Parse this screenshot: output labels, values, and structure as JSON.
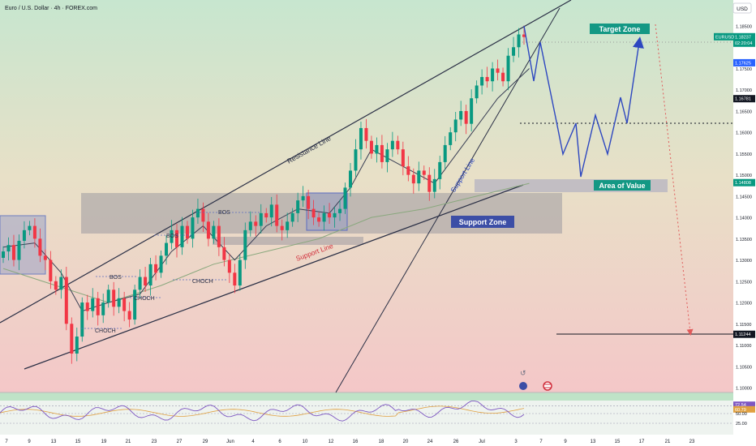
{
  "header": {
    "symbol_title": "Euro / U.S. Dollar · 4h · FOREX.com"
  },
  "currency_button": "USD",
  "chart_data": {
    "type": "candlestick",
    "symbol": "EURUSD",
    "ylim": [
      1.0965,
      1.188
    ],
    "y_ticks": [
      "1.18500",
      "1.17500",
      "1.17000",
      "1.16500",
      "1.16000",
      "1.15500",
      "1.15000",
      "1.14500",
      "1.14000",
      "1.13500",
      "1.13000",
      "1.12500",
      "1.12000",
      "1.11500",
      "1.11000",
      "1.10500",
      "1.10000"
    ],
    "x_ticks": [
      "7",
      "9",
      "13",
      "15",
      "19",
      "21",
      "23",
      "27",
      "29",
      "Jun",
      "4",
      "6",
      "10",
      "12",
      "16",
      "18",
      "20",
      "24",
      "26",
      "Jul",
      "3",
      "7",
      "9",
      "13",
      "15",
      "17",
      "21",
      "23"
    ],
    "price_tags": [
      {
        "label": "EURUSD",
        "value": "1.18237",
        "sub": "02:20:04",
        "color": "#089981"
      },
      {
        "label": "",
        "value": "1.17625",
        "color": "#2962ff"
      },
      {
        "label": "",
        "value": "1.16781",
        "color": "#131722"
      },
      {
        "label": "",
        "value": "1.14808",
        "color": "#089981"
      },
      {
        "label": "",
        "value": "1.11244",
        "color": "#131722"
      }
    ],
    "closes": [
      1.132,
      1.1335,
      1.13,
      1.1345,
      1.137,
      1.138,
      1.135,
      1.131,
      1.13,
      1.125,
      1.123,
      1.126,
      1.115,
      1.108,
      1.112,
      1.12,
      1.118,
      1.121,
      1.117,
      1.12,
      1.123,
      1.119,
      1.121,
      1.118,
      1.116,
      1.123,
      1.126,
      1.124,
      1.129,
      1.127,
      1.131,
      1.134,
      1.137,
      1.133,
      1.138,
      1.135,
      1.14,
      1.142,
      1.139,
      1.135,
      1.138,
      1.133,
      1.13,
      1.127,
      1.124,
      1.13,
      1.137,
      1.139,
      1.138,
      1.141,
      1.14,
      1.143,
      1.138,
      1.137,
      1.139,
      1.141,
      1.144,
      1.145,
      1.142,
      1.14,
      1.139,
      1.141,
      1.14,
      1.141,
      1.142,
      1.147,
      1.151,
      1.156,
      1.161,
      1.158,
      1.155,
      1.157,
      1.153,
      1.156,
      1.158,
      1.156,
      1.152,
      1.15,
      1.148,
      1.151,
      1.15,
      1.146,
      1.149,
      1.153,
      1.157,
      1.16,
      1.163,
      1.165,
      1.162,
      1.168,
      1.171,
      1.173,
      1.172,
      1.175,
      1.174,
      1.172,
      1.178,
      1.18,
      1.183,
      1.1824
    ],
    "ma_fast": [
      [
        0,
        1.133
      ],
      [
        6,
        1.134
      ],
      [
        11,
        1.127
      ],
      [
        15,
        1.118
      ],
      [
        20,
        1.12
      ],
      [
        26,
        1.122
      ],
      [
        32,
        1.132
      ],
      [
        38,
        1.138
      ],
      [
        44,
        1.13
      ],
      [
        50,
        1.138
      ],
      [
        56,
        1.142
      ],
      [
        62,
        1.141
      ],
      [
        66,
        1.147
      ],
      [
        70,
        1.156
      ],
      [
        76,
        1.152
      ],
      [
        82,
        1.148
      ],
      [
        88,
        1.158
      ],
      [
        94,
        1.168
      ],
      [
        100,
        1.175
      ]
    ],
    "ma_slow": [
      [
        0,
        1.128
      ],
      [
        10,
        1.124
      ],
      [
        20,
        1.12
      ],
      [
        30,
        1.124
      ],
      [
        40,
        1.129
      ],
      [
        50,
        1.132
      ],
      [
        60,
        1.135
      ],
      [
        70,
        1.14
      ],
      [
        80,
        1.142
      ],
      [
        90,
        1.145
      ],
      [
        100,
        1.148
      ]
    ],
    "annotations": {
      "resistance_line": "Resistance Line",
      "support_line_lower": "Support Line",
      "support_line_upper": "Support Line",
      "target_zone": "Target Zone",
      "area_of_value": "Area of Value",
      "support_zone": "Support Zone",
      "structure_labels": [
        "BOS",
        "BOS",
        "BOS",
        "CHOCH",
        "CHOCH",
        "CHOCH"
      ]
    },
    "projection_path": [
      [
        1.186
      ],
      [
        1.179
      ],
      [
        1.183
      ],
      [
        1.174
      ],
      [
        1.16
      ],
      [
        1.167
      ],
      [
        1.152
      ],
      [
        1.166
      ],
      [
        1.159
      ],
      [
        1.167
      ],
      [
        1.16
      ],
      [
        1.172
      ],
      [
        1.167
      ],
      [
        1.183
      ]
    ],
    "colors": {
      "up": "#089981",
      "down": "#f23645",
      "projection": "#2d47c0",
      "target_box": "#139884",
      "support_box": "#3c4ea6",
      "rsi": "#7e57c2"
    }
  },
  "rsi": {
    "value": "72.54",
    "second": "60.79",
    "levels": [
      "70.00",
      "50.00",
      "25.00"
    ]
  }
}
